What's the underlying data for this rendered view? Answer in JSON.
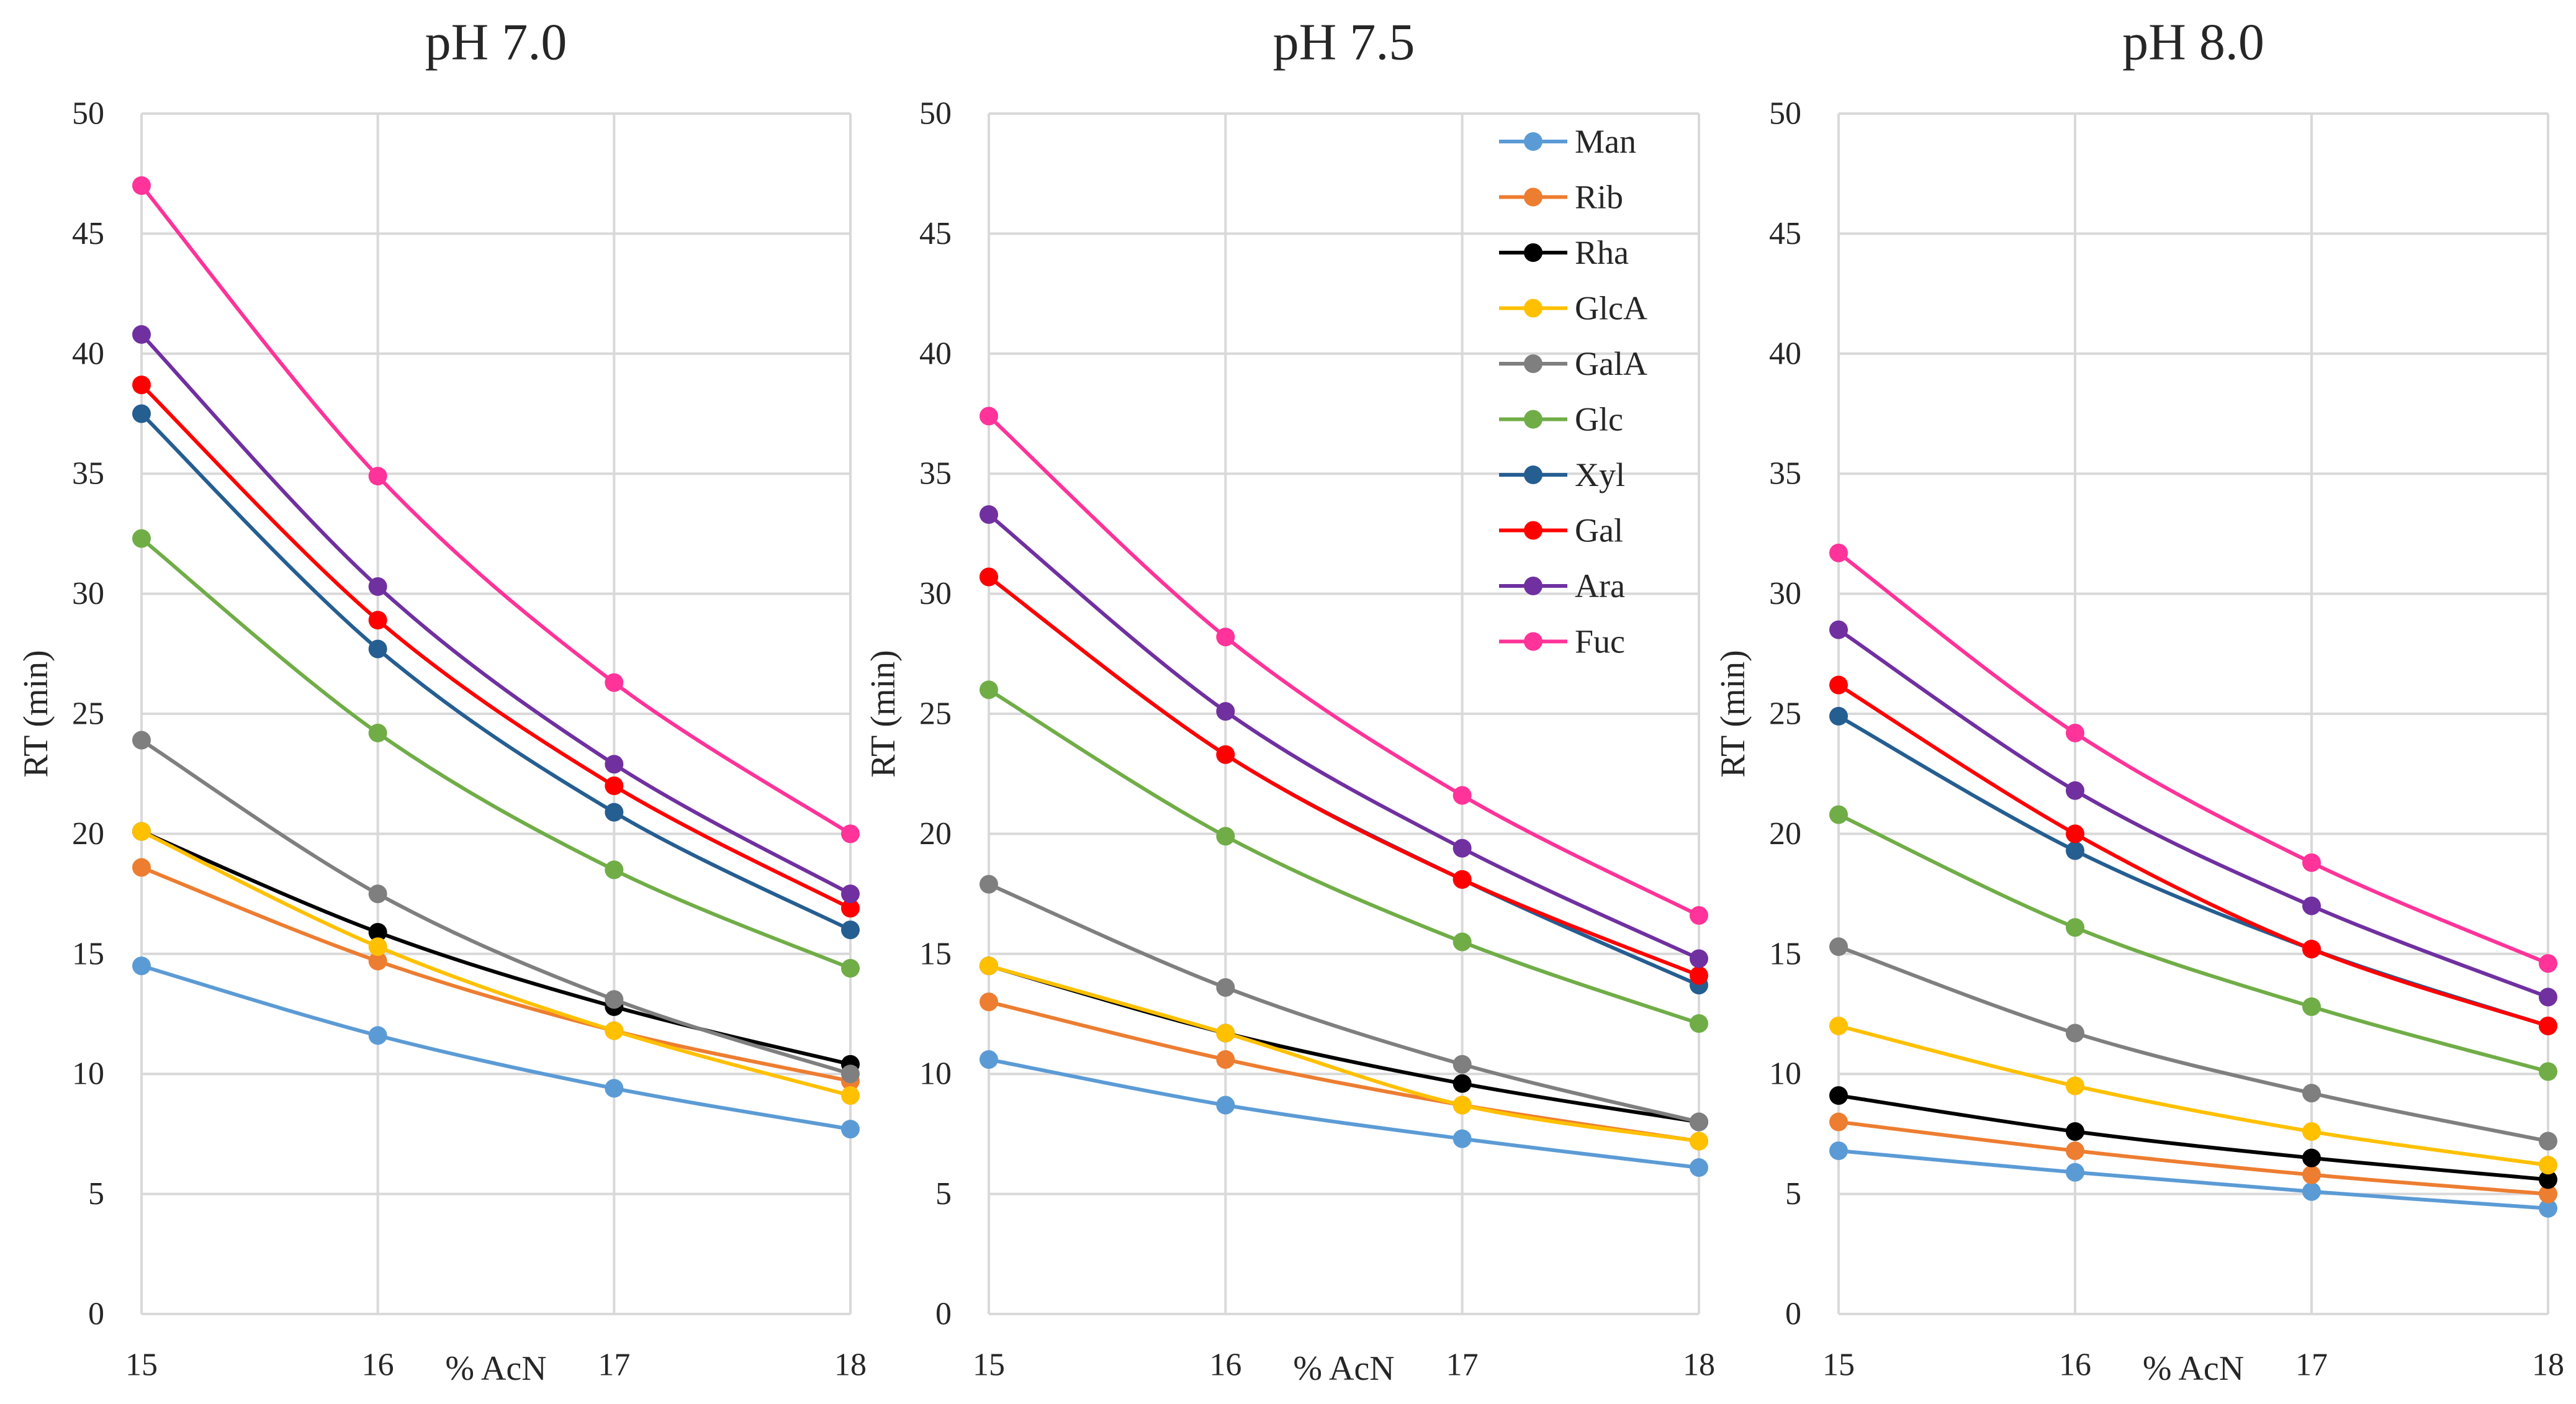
{
  "chart_data": [
    {
      "type": "line",
      "title": "pH 7.0",
      "xlabel": "% AcN",
      "ylabel": "RT (min)",
      "x": [
        15,
        16,
        17,
        18
      ],
      "xlim": [
        15,
        18
      ],
      "ylim": [
        0,
        50
      ],
      "yticks": [
        0,
        5,
        10,
        15,
        20,
        25,
        30,
        35,
        40,
        45,
        50
      ],
      "grid": true,
      "series": [
        {
          "name": "Man",
          "color": "#5b9bd5",
          "values": [
            14.5,
            11.6,
            9.4,
            7.7
          ]
        },
        {
          "name": "Rib",
          "color": "#ed7d31",
          "values": [
            18.6,
            14.7,
            11.8,
            9.7
          ]
        },
        {
          "name": "Rha",
          "color": "#000000",
          "values": [
            20.1,
            15.9,
            12.8,
            10.4
          ]
        },
        {
          "name": "GlcA",
          "color": "#ffc000",
          "values": [
            20.1,
            15.3,
            11.8,
            9.1
          ]
        },
        {
          "name": "GalA",
          "color": "#7f7f7f",
          "values": [
            23.9,
            17.5,
            13.1,
            10.0
          ]
        },
        {
          "name": "Glc",
          "color": "#70ad47",
          "values": [
            32.3,
            24.2,
            18.5,
            14.4
          ]
        },
        {
          "name": "Xyl",
          "color": "#255e91",
          "values": [
            37.5,
            27.7,
            20.9,
            16.0
          ]
        },
        {
          "name": "Gal",
          "color": "#ff0000",
          "values": [
            38.7,
            28.9,
            22.0,
            16.9
          ]
        },
        {
          "name": "Ara",
          "color": "#7030a0",
          "values": [
            40.8,
            30.3,
            22.9,
            17.5
          ]
        },
        {
          "name": "Fuc",
          "color": "#ff3399",
          "values": [
            47.0,
            34.9,
            26.3,
            20.0
          ]
        }
      ]
    },
    {
      "type": "line",
      "title": "pH 7.5",
      "xlabel": "% AcN",
      "ylabel": "RT (min)",
      "x": [
        15,
        16,
        17,
        18
      ],
      "xlim": [
        15,
        18
      ],
      "ylim": [
        0,
        50
      ],
      "yticks": [
        0,
        5,
        10,
        15,
        20,
        25,
        30,
        35,
        40,
        45,
        50
      ],
      "grid": true,
      "legend": "top-right",
      "series": [
        {
          "name": "Man",
          "color": "#5b9bd5",
          "values": [
            10.6,
            8.7,
            7.3,
            6.1
          ]
        },
        {
          "name": "Rib",
          "color": "#ed7d31",
          "values": [
            13.0,
            10.6,
            8.7,
            7.2
          ]
        },
        {
          "name": "Rha",
          "color": "#000000",
          "values": [
            14.5,
            11.7,
            9.6,
            8.0
          ]
        },
        {
          "name": "GlcA",
          "color": "#ffc000",
          "values": [
            14.5,
            11.7,
            8.7,
            7.2
          ]
        },
        {
          "name": "GalA",
          "color": "#7f7f7f",
          "values": [
            17.9,
            13.6,
            10.4,
            8.0
          ]
        },
        {
          "name": "Glc",
          "color": "#70ad47",
          "values": [
            26.0,
            19.9,
            15.5,
            12.1
          ]
        },
        {
          "name": "Xyl",
          "color": "#255e91",
          "values": [
            30.7,
            23.3,
            18.1,
            13.7
          ]
        },
        {
          "name": "Gal",
          "color": "#ff0000",
          "values": [
            30.7,
            23.3,
            18.1,
            14.1
          ]
        },
        {
          "name": "Ara",
          "color": "#7030a0",
          "values": [
            33.3,
            25.1,
            19.4,
            14.8
          ]
        },
        {
          "name": "Fuc",
          "color": "#ff3399",
          "values": [
            37.4,
            28.2,
            21.6,
            16.6
          ]
        }
      ]
    },
    {
      "type": "line",
      "title": "pH 8.0",
      "xlabel": "% AcN",
      "ylabel": "RT (min)",
      "x": [
        15,
        16,
        17,
        18
      ],
      "xlim": [
        15,
        18
      ],
      "ylim": [
        0,
        50
      ],
      "yticks": [
        0,
        5,
        10,
        15,
        20,
        25,
        30,
        35,
        40,
        45,
        50
      ],
      "grid": true,
      "series": [
        {
          "name": "Man",
          "color": "#5b9bd5",
          "values": [
            6.8,
            5.9,
            5.1,
            4.4
          ]
        },
        {
          "name": "Rib",
          "color": "#ed7d31",
          "values": [
            8.0,
            6.8,
            5.8,
            5.0
          ]
        },
        {
          "name": "Rha",
          "color": "#000000",
          "values": [
            9.1,
            7.6,
            6.5,
            5.6
          ]
        },
        {
          "name": "GlcA",
          "color": "#ffc000",
          "values": [
            12.0,
            9.5,
            7.6,
            6.2
          ]
        },
        {
          "name": "GalA",
          "color": "#7f7f7f",
          "values": [
            15.3,
            11.7,
            9.2,
            7.2
          ]
        },
        {
          "name": "Glc",
          "color": "#70ad47",
          "values": [
            20.8,
            16.1,
            12.8,
            10.1
          ]
        },
        {
          "name": "Xyl",
          "color": "#255e91",
          "values": [
            24.9,
            19.3,
            15.2,
            12.0
          ]
        },
        {
          "name": "Gal",
          "color": "#ff0000",
          "values": [
            26.2,
            20.0,
            15.2,
            12.0
          ]
        },
        {
          "name": "Ara",
          "color": "#7030a0",
          "values": [
            28.5,
            21.8,
            17.0,
            13.2
          ]
        },
        {
          "name": "Fuc",
          "color": "#ff3399",
          "values": [
            31.7,
            24.2,
            18.8,
            14.6
          ]
        }
      ]
    }
  ]
}
